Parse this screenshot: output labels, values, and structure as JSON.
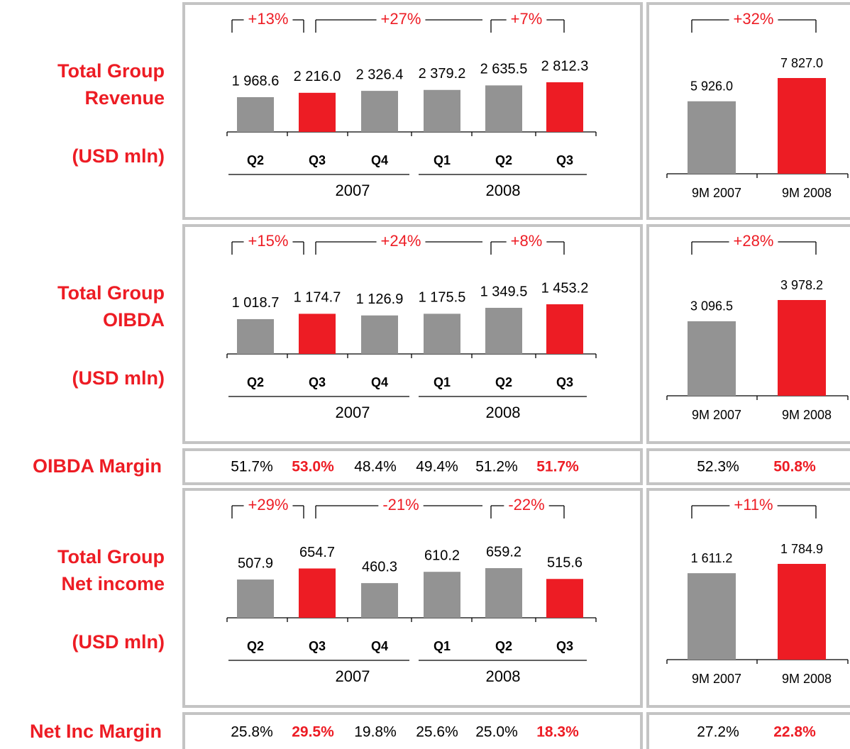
{
  "rows": [
    {
      "label": [
        "Total Group",
        "Revenue",
        "(USD mln)"
      ]
    },
    {
      "label": [
        "Total Group",
        "OIBDA",
        "(USD mln)"
      ]
    },
    {
      "label": [
        "Total Group",
        "Net income",
        "(USD mln)"
      ]
    }
  ],
  "chart_data": [
    {
      "type": "bar",
      "categories": [
        "Q2",
        "Q3",
        "Q4",
        "Q1",
        "Q2",
        "Q3"
      ],
      "groups": [
        "2007",
        "2008"
      ],
      "values": [
        1968.6,
        2216.0,
        2326.4,
        2379.2,
        2635.5,
        2812.3
      ],
      "value_labels": [
        "1 968.6",
        "2 216.0",
        "2 326.4",
        "2 379.2",
        "2 635.5",
        "2 812.3"
      ],
      "colors": [
        "#939393",
        "#ed1c24",
        "#939393",
        "#939393",
        "#939393",
        "#ed1c24"
      ],
      "growth": [
        "+13%",
        "+27%",
        "+7%"
      ]
    },
    {
      "type": "bar",
      "categories": [
        "9M 2007",
        "9M 2008"
      ],
      "values": [
        5926.0,
        7827.0
      ],
      "value_labels": [
        "5 926.0",
        "7 827.0"
      ],
      "colors": [
        "#939393",
        "#ed1c24"
      ],
      "growth": [
        "+32%"
      ]
    },
    {
      "type": "bar",
      "categories": [
        "Q2",
        "Q3",
        "Q4",
        "Q1",
        "Q2",
        "Q3"
      ],
      "groups": [
        "2007",
        "2008"
      ],
      "values": [
        1018.7,
        1174.7,
        1126.9,
        1175.5,
        1349.5,
        1453.2
      ],
      "value_labels": [
        "1 018.7",
        "1 174.7",
        "1 126.9",
        "1 175.5",
        "1 349.5",
        "1 453.2"
      ],
      "colors": [
        "#939393",
        "#ed1c24",
        "#939393",
        "#939393",
        "#939393",
        "#ed1c24"
      ],
      "growth": [
        "+15%",
        "+24%",
        "+8%"
      ]
    },
    {
      "type": "bar",
      "categories": [
        "9M 2007",
        "9M 2008"
      ],
      "values": [
        3096.5,
        3978.2
      ],
      "value_labels": [
        "3 096.5",
        "3 978.2"
      ],
      "colors": [
        "#939393",
        "#ed1c24"
      ],
      "growth": [
        "+28%"
      ]
    },
    {
      "type": "bar",
      "categories": [
        "Q2",
        "Q3",
        "Q4",
        "Q1",
        "Q2",
        "Q3"
      ],
      "groups": [
        "2007",
        "2008"
      ],
      "values": [
        507.9,
        654.7,
        460.3,
        610.2,
        659.2,
        515.6
      ],
      "colors": [
        "#939393",
        "#ed1c24",
        "#939393",
        "#939393",
        "#939393",
        "#ed1c24"
      ],
      "growth": [
        "+29%",
        "-21%",
        "-22%"
      ]
    },
    {
      "type": "bar",
      "categories": [
        "9M 2007",
        "9M 2008"
      ],
      "values": [
        1611.2,
        1784.9
      ],
      "value_labels": [
        "1 611.2",
        "1 784.9"
      ],
      "colors": [
        "#939393",
        "#ed1c24"
      ],
      "growth": [
        "+11%"
      ]
    }
  ],
  "margins": [
    {
      "label": "OIBDA Margin",
      "quarters": {
        "values": [
          51.7,
          53.0,
          48.4,
          49.4,
          51.2,
          51.7
        ],
        "value_labels": [
          "51.7%",
          "53.0%",
          "48.4%",
          "49.4%",
          "51.2%",
          "51.7%"
        ],
        "colors": [
          "#000000",
          "#ed1c24",
          "#000000",
          "#000000",
          "#000000",
          "#ed1c24"
        ]
      },
      "nine_months": {
        "values": [
          52.3,
          50.8
        ],
        "value_labels": [
          "52.3%",
          "50.8%"
        ],
        "colors": [
          "#000000",
          "#ed1c24"
        ]
      }
    },
    {
      "label": "Net Inc Margin",
      "quarters": {
        "values": [
          25.8,
          29.5,
          19.8,
          25.6,
          25.0,
          18.3
        ],
        "value_labels": [
          "25.8%",
          "29.5%",
          "19.8%",
          "25.6%",
          "25.0%",
          "18.3%"
        ],
        "colors": [
          "#000000",
          "#ed1c24",
          "#000000",
          "#000000",
          "#000000",
          "#ed1c24"
        ]
      },
      "nine_months": {
        "values": [
          27.2,
          22.8
        ],
        "value_labels": [
          "27.2%",
          "22.8%"
        ],
        "colors": [
          "#000000",
          "#ed1c24"
        ]
      }
    }
  ]
}
